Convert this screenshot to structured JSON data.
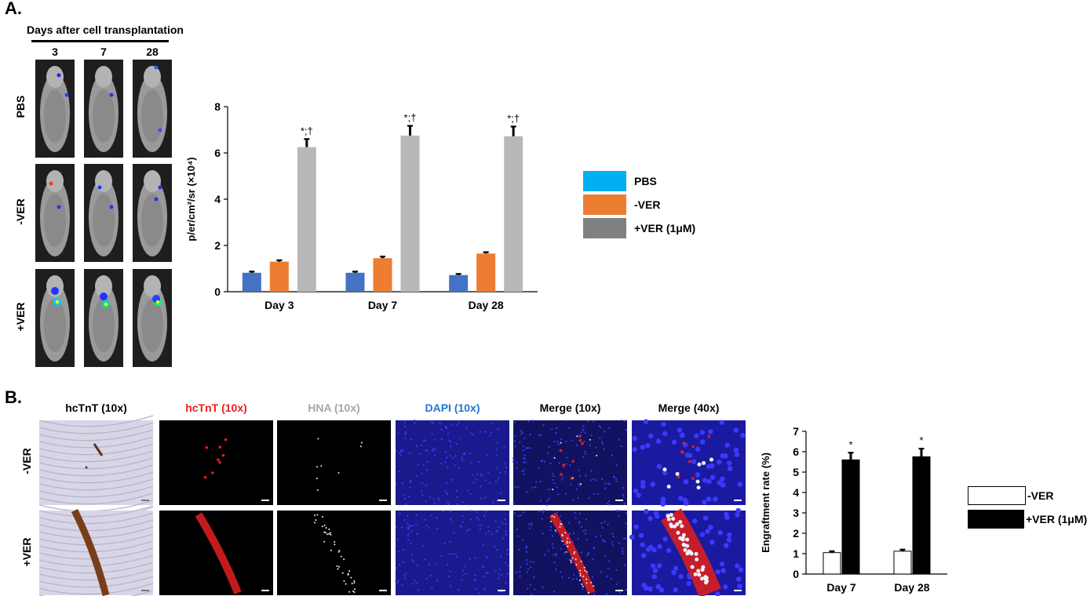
{
  "panel_a": {
    "letter": "A.",
    "days_header": "Days after cell transplantation",
    "day_columns": [
      "3",
      "7",
      "28"
    ],
    "row_labels": [
      "PBS",
      "-VER",
      "+VER"
    ]
  },
  "panel_b": {
    "letter": "B.",
    "column_headers": [
      {
        "text": "hcTnT (10x)",
        "color": "#000000"
      },
      {
        "text": "hcTnT (10x)",
        "color": "#ee1c1c"
      },
      {
        "text": "HNA (10x)",
        "color": "#a6a6a6"
      },
      {
        "text": "DAPI (10x)",
        "color": "#1f77d0"
      },
      {
        "text": "Merge (10x)",
        "color": "#000000"
      },
      {
        "text": "Merge (40x)",
        "color": "#000000"
      }
    ],
    "row_labels": [
      "-VER",
      "+VER"
    ]
  },
  "chart_data": [
    {
      "type": "bar",
      "categories": [
        "Day 3",
        "Day 7",
        "Day 28"
      ],
      "series": [
        {
          "name": "PBS",
          "values": [
            0.82,
            0.82,
            0.72
          ],
          "errors": [
            0.05,
            0.05,
            0.05
          ],
          "color": "#4472c4",
          "legend_color": "#00b0f0"
        },
        {
          "name": "-VER",
          "values": [
            1.3,
            1.45,
            1.65
          ],
          "errors": [
            0.06,
            0.07,
            0.06
          ],
          "color": "#ed7d31",
          "legend_color": "#ed7d31"
        },
        {
          "name": "+VER (1μM)",
          "values": [
            6.25,
            6.75,
            6.72
          ],
          "errors": [
            0.35,
            0.42,
            0.42
          ],
          "color": "#b8b8b8",
          "legend_color": "#808080"
        }
      ],
      "annotations": [
        "*;†",
        "*;†",
        "*;†"
      ],
      "ylabel": "p/er/cm²/sr (×10⁴)",
      "ylim": [
        0,
        8
      ],
      "yticks": [
        "0",
        "2",
        "4",
        "6",
        "8"
      ],
      "grid": false,
      "legend": "right"
    },
    {
      "type": "bar",
      "categories": [
        "Day 7",
        "Day 28"
      ],
      "series": [
        {
          "name": "-VER",
          "values": [
            1.05,
            1.12
          ],
          "errors": [
            0.07,
            0.08
          ],
          "color": "#ffffff"
        },
        {
          "name": "+VER (1μM)",
          "values": [
            5.6,
            5.75
          ],
          "errors": [
            0.35,
            0.4
          ],
          "color": "#000000"
        }
      ],
      "annotations": [
        "*",
        "*"
      ],
      "ylabel": "Engraftment rate (%)",
      "ylim": [
        0,
        7
      ],
      "yticks": [
        "0",
        "1",
        "2",
        "3",
        "4",
        "5",
        "6",
        "7"
      ],
      "grid": false,
      "legend": "right"
    }
  ]
}
